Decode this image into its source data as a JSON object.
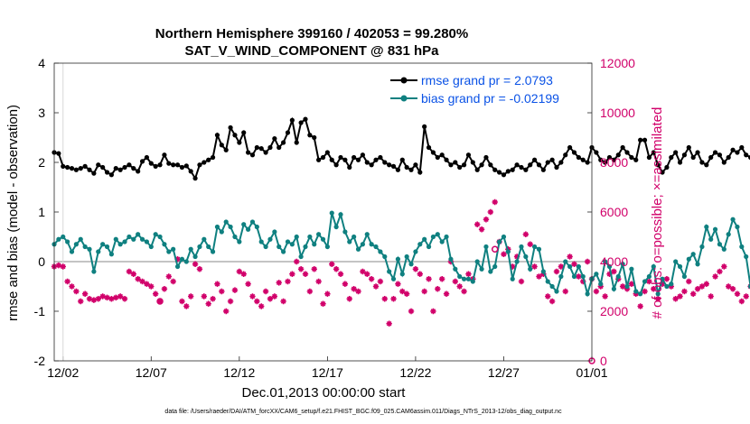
{
  "chart_data": {
    "type": "line",
    "title": "Northern Hemisphere 399160 / 402053 = 99.280%",
    "subtitle": "SAT_V_WIND_COMPONENT @ 831 hPa",
    "xlabel": "Dec.01,2013 00:00:00 start",
    "ylabel": "rmse and bias (model - observation)",
    "ylabel_right": "# of obs: o=possible; ×=assimilated",
    "footer": "data file: /Users/raeder/DAI/ATM_forcXX/CAM6_setup/f.e21.FHIST_BGC.f09_025.CAM6assim.011/Diags_NTrS_2013-12/obs_diag_output.nc",
    "xlim": [
      0.5,
      31.0
    ],
    "ylim": [
      -2,
      4
    ],
    "ylim_right": [
      0,
      12000
    ],
    "x_tick_values": [
      1,
      6,
      11,
      16,
      21,
      26,
      31
    ],
    "x_tick_labels": [
      "12/02",
      "12/07",
      "12/12",
      "12/17",
      "12/22",
      "12/27",
      "01/01"
    ],
    "y_ticks": [
      "-2",
      "-1",
      "0",
      "1",
      "2",
      "3",
      "4"
    ],
    "y_tick_values": [
      -2,
      -1,
      0,
      1,
      2,
      3,
      4
    ],
    "y_ticks_right": [
      "0",
      "2000",
      "4000",
      "6000",
      "8000",
      "10000",
      "12000"
    ],
    "y_tick_values_right": [
      0,
      2000,
      4000,
      6000,
      8000,
      10000,
      12000
    ],
    "x_step": 0.25,
    "x_start": 0.5,
    "legend_position": "top-right",
    "series": [
      {
        "name": "rmse grand pr = 2.0793",
        "color": "#000000",
        "marker": "filled-circle",
        "values": [
          2.2,
          2.18,
          1.92,
          1.9,
          1.88,
          1.85,
          1.88,
          1.92,
          1.85,
          1.78,
          1.95,
          1.9,
          1.8,
          1.75,
          1.88,
          1.85,
          1.9,
          1.95,
          1.88,
          1.82,
          2.02,
          2.1,
          1.98,
          1.92,
          1.95,
          2.15,
          1.98,
          1.95,
          1.95,
          1.9,
          1.93,
          1.82,
          1.68,
          1.95,
          2.0,
          2.05,
          2.1,
          2.55,
          2.35,
          2.25,
          2.7,
          2.55,
          2.4,
          2.6,
          2.2,
          2.15,
          2.3,
          2.28,
          2.2,
          2.3,
          2.48,
          2.3,
          2.4,
          2.6,
          2.85,
          2.4,
          2.8,
          2.87,
          2.55,
          2.5,
          2.05,
          2.1,
          2.2,
          2.05,
          1.95,
          2.1,
          2.05,
          1.9,
          2.1,
          2.05,
          2.15,
          2.0,
          1.95,
          2.05,
          2.1,
          2.0,
          1.95,
          1.92,
          1.85,
          2.05,
          1.9,
          1.85,
          1.95,
          1.8,
          2.72,
          2.3,
          2.2,
          2.1,
          2.15,
          2.05,
          1.95,
          2.0,
          1.9,
          1.95,
          2.15,
          2.0,
          1.85,
          1.95,
          2.1,
          1.95,
          1.85,
          1.8,
          1.75,
          1.82,
          1.85,
          1.95,
          1.9,
          1.85,
          1.95,
          2.05,
          1.95,
          1.85,
          2.0,
          2.05,
          1.9,
          2.0,
          2.15,
          2.3,
          2.2,
          2.1,
          2.05,
          2.0,
          2.3,
          2.2,
          2.05,
          2.0,
          2.1,
          2.05,
          2.15,
          2.3,
          2.2,
          2.1,
          2.05,
          2.45,
          2.45,
          2.1,
          2.2,
          1.95,
          1.8,
          1.9,
          2.1,
          2.2,
          2.0,
          2.15,
          2.3,
          2.1,
          2.2,
          2.0,
          1.95,
          2.1,
          2.2,
          2.15,
          2.0,
          2.1,
          2.25,
          2.2,
          2.3,
          2.15,
          2.1,
          2.25,
          2.28,
          2.3,
          2.2,
          2.1,
          2.2,
          2.2,
          2.22
        ]
      },
      {
        "name": "bias grand pr = -0.02199",
        "color": "#0f8080",
        "marker": "filled-circle",
        "values": [
          0.35,
          0.45,
          0.5,
          0.4,
          0.2,
          0.35,
          0.45,
          0.3,
          0.25,
          -0.2,
          0.2,
          0.35,
          0.3,
          0.15,
          0.45,
          0.35,
          0.4,
          0.5,
          0.45,
          0.55,
          0.45,
          0.4,
          0.3,
          0.55,
          0.5,
          0.35,
          0.2,
          0.25,
          -0.1,
          0.05,
          0.0,
          0.25,
          0.1,
          0.3,
          0.45,
          0.3,
          0.2,
          0.7,
          0.6,
          0.8,
          0.7,
          0.5,
          0.4,
          0.75,
          0.65,
          0.8,
          0.7,
          0.4,
          0.3,
          0.45,
          0.6,
          0.3,
          0.2,
          0.4,
          0.35,
          0.5,
          0.1,
          0.3,
          0.5,
          0.35,
          0.55,
          0.45,
          0.3,
          0.98,
          0.7,
          0.95,
          0.6,
          0.4,
          0.5,
          0.25,
          0.35,
          0.55,
          0.35,
          0.3,
          0.2,
          0.1,
          -0.2,
          -0.35,
          0.05,
          -0.25,
          0.1,
          -0.05,
          0.2,
          0.35,
          0.45,
          0.3,
          0.5,
          0.55,
          0.4,
          0.5,
          0.05,
          -0.15,
          -0.3,
          -0.35,
          -0.35,
          -0.4,
          0.0,
          -0.15,
          0.3,
          -0.2,
          -0.1,
          0.4,
          0.5,
          0.2,
          -0.35,
          0.0,
          0.3,
          0.1,
          -0.15,
          0.3,
          0.25,
          -0.2,
          -0.4,
          -0.5,
          -0.6,
          -0.3,
          0.0,
          -0.1,
          -0.3,
          -0.1,
          -0.3,
          -0.65,
          -0.35,
          -0.25,
          -0.45,
          0.0,
          -0.1,
          -0.55,
          -0.3,
          -0.05,
          -0.5,
          -0.15,
          -0.6,
          -0.65,
          -0.4,
          -0.3,
          -0.1,
          -0.65,
          -0.35,
          -0.5,
          -0.45,
          0.0,
          -0.1,
          -0.3,
          0.05,
          0.15,
          -0.05,
          0.3,
          0.7,
          0.45,
          0.65,
          0.35,
          0.25,
          0.55,
          0.85,
          0.7,
          0.3,
          0.1,
          -0.5,
          -0.05,
          -0.2,
          -0.45,
          -0.6,
          -0.55,
          -0.95,
          -0.65,
          -0.75,
          -0.4,
          -0.5,
          -0.45,
          -0.35,
          -0.4
        ]
      },
      {
        "name": "# of obs possible / assimilated",
        "color": "#d1006a",
        "marker": "asterisk",
        "axis": "right",
        "values": [
          3800,
          3850,
          3800,
          3200,
          3000,
          2800,
          2400,
          2700,
          2500,
          2450,
          2500,
          2600,
          2550,
          2500,
          2550,
          2600,
          2500,
          3600,
          3500,
          3300,
          3200,
          3100,
          3000,
          2700,
          2400,
          2900,
          3400,
          3200,
          4100,
          2400,
          2200,
          2600,
          3900,
          3700,
          2600,
          2300,
          2500,
          3100,
          2800,
          2000,
          2400,
          2850,
          3600,
          3500,
          3100,
          2600,
          2400,
          2200,
          2800,
          2500,
          2600,
          3150,
          2400,
          3200,
          3500,
          4000,
          3700,
          3500,
          2800,
          3700,
          3200,
          2300,
          2700,
          3900,
          3700,
          3500,
          3100,
          2500,
          2900,
          2800,
          3600,
          3500,
          3300,
          3000,
          3200,
          2500,
          1500,
          2500,
          3100,
          2800,
          2700,
          2000,
          3700,
          3500,
          2800,
          3300,
          2000,
          2900,
          3300,
          2700,
          4000,
          3200,
          3000,
          2800,
          3500,
          3300,
          5500,
          5300,
          5700,
          6000,
          6400,
          4800,
          4300,
          4500,
          3800,
          4200,
          3200,
          5100,
          4700,
          3800,
          3400,
          3500,
          2600,
          2400,
          3600,
          3800,
          2800,
          4200,
          3900,
          3400,
          3200,
          4000,
          3300,
          2800,
          3000,
          2600,
          3500,
          3600,
          3300,
          3000,
          2900,
          3100,
          2700,
          2200,
          2800,
          3200,
          2900,
          2500,
          3100,
          3300,
          3000,
          2500,
          2600,
          2800,
          3200,
          2700,
          2900,
          3000,
          3100,
          2600,
          3400,
          3600,
          3800,
          3000,
          2900,
          2700,
          2400,
          2600,
          3000,
          2900,
          2800,
          3100,
          2800,
          3100,
          2900,
          2700,
          2800,
          2900,
          2600,
          2700,
          2800,
          3000,
          3200,
          3100,
          3500
        ]
      }
    ]
  }
}
